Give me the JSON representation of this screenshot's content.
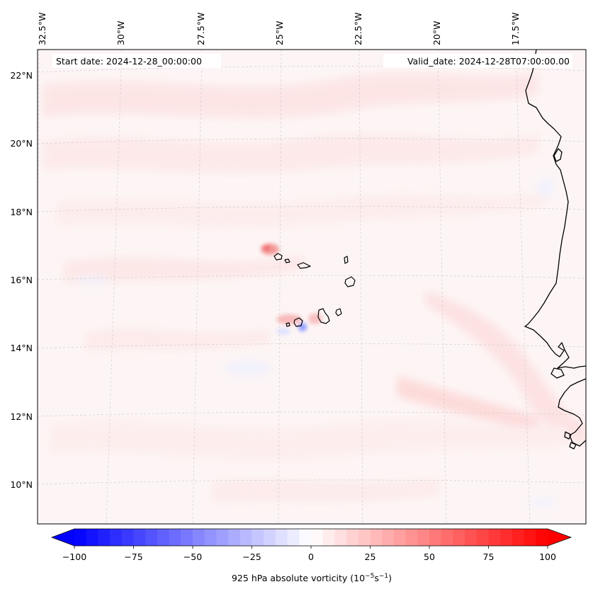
{
  "header": {
    "start_label": "Start date: 2024-12-28_00:00:00",
    "valid_label": "Valid_date: 2024-12-28T07:00:00.00"
  },
  "map": {
    "projection": "lambert-conic",
    "lon_labels": [
      "32.5°W",
      "30°W",
      "27.5°W",
      "25°W",
      "22.5°W",
      "20°W",
      "17.5°W"
    ],
    "lat_labels": [
      "22°N",
      "20°N",
      "18°N",
      "16°N",
      "14°N",
      "12°N",
      "10°N"
    ],
    "gridlines": true,
    "coastline_color": "#000000"
  },
  "colorbar": {
    "label_prefix": "925 hPa absolute vorticity (10",
    "label_exp1": "−5",
    "label_mid": "s",
    "label_exp2": "−1",
    "label_suffix": ")",
    "tick_labels": [
      "−100",
      "−75",
      "−50",
      "−25",
      "0",
      "25",
      "50",
      "75",
      "100"
    ],
    "min": -100,
    "max": 100,
    "step": 5,
    "low_color": "#0000ff",
    "high_color": "#ff0000",
    "mid_color": "#ffffff"
  }
}
